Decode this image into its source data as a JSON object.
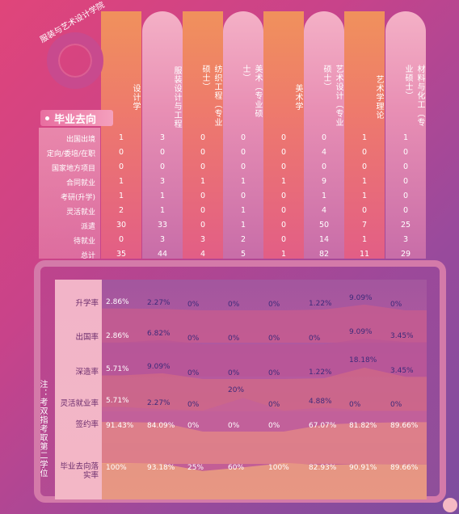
{
  "institution": "服装与艺术设计学院",
  "section_title": "毕业去向",
  "note": "注：考双指考取第二学位",
  "columns": [
    {
      "name": "设计学"
    },
    {
      "name": "服装设计与工程"
    },
    {
      "name": "纺织工程（专业硕士）"
    },
    {
      "name": "美术（专业硕士）"
    },
    {
      "name": "美术学"
    },
    {
      "name": "艺术设计（专业硕士）"
    },
    {
      "name": "艺术学理论"
    },
    {
      "name": "材料与化工（专业硕士）"
    }
  ],
  "rows": [
    {
      "label": "出国出境",
      "values": [
        "1",
        "3",
        "0",
        "0",
        "0",
        "0",
        "1",
        "1"
      ]
    },
    {
      "label": "定向/委培/在职",
      "values": [
        "0",
        "0",
        "0",
        "0",
        "0",
        "4",
        "0",
        "0"
      ]
    },
    {
      "label": "国家地方项目",
      "values": [
        "0",
        "0",
        "0",
        "0",
        "0",
        "0",
        "0",
        "0"
      ]
    },
    {
      "label": "合同就业",
      "values": [
        "1",
        "3",
        "1",
        "1",
        "1",
        "9",
        "1",
        "0"
      ]
    },
    {
      "label": "考研(升学)",
      "values": [
        "1",
        "1",
        "0",
        "0",
        "0",
        "1",
        "1",
        "0"
      ]
    },
    {
      "label": "灵活就业",
      "values": [
        "2",
        "1",
        "0",
        "1",
        "0",
        "4",
        "0",
        "0"
      ]
    },
    {
      "label": "派遣",
      "values": [
        "30",
        "33",
        "0",
        "1",
        "0",
        "50",
        "7",
        "25"
      ]
    },
    {
      "label": "待就业",
      "values": [
        "0",
        "3",
        "3",
        "2",
        "0",
        "14",
        "1",
        "3"
      ]
    },
    {
      "label": "总计",
      "values": [
        "35",
        "44",
        "4",
        "5",
        "1",
        "82",
        "11",
        "29"
      ]
    }
  ],
  "rates": [
    {
      "label": "升学率",
      "values": [
        "2.86%",
        "2.27%",
        "0%",
        "0%",
        "0%",
        "1.22%",
        "9.09%",
        "0%"
      ]
    },
    {
      "label": "出国率",
      "values": [
        "2.86%",
        "6.82%",
        "0%",
        "0%",
        "0%",
        "0%",
        "9.09%",
        "3.45%"
      ]
    },
    {
      "label": "深造率",
      "values": [
        "5.71%",
        "9.09%",
        "0%",
        "0%",
        "0%",
        "1.22%",
        "18.18%",
        "3.45%"
      ]
    },
    {
      "label": "灵活就业率",
      "values": [
        "5.71%",
        "2.27%",
        "0%",
        "20%",
        "0%",
        "4.88%",
        "0%",
        "0%"
      ]
    },
    {
      "label": "签约率",
      "values": [
        "91.43%",
        "84.09%",
        "0%",
        "0%",
        "0%",
        "67.07%",
        "81.82%",
        "89.66%"
      ]
    },
    {
      "label": "毕业去向落实率",
      "values": [
        "100%",
        "93.18%",
        "25%",
        "60%",
        "100%",
        "82.93%",
        "90.91%",
        "89.66%"
      ]
    }
  ],
  "colors": {
    "orange_col": "#f0915c",
    "pink_col": "#f4b0c6",
    "label_dark": "#6a2b6c",
    "value_dark": "#3d2a7a"
  }
}
